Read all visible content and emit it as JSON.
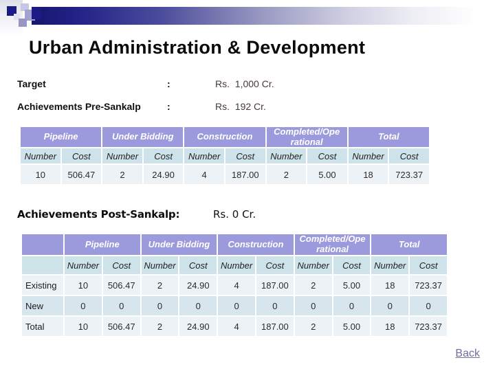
{
  "header": {
    "title": "Urban Administration & Development"
  },
  "summary": {
    "target_label": "Target",
    "target_colon": ":",
    "target_value": "Rs.  1,000 Cr.",
    "pre_label": "Achievements Pre-Sankalp",
    "pre_colon": ":",
    "pre_value": "Rs.  192 Cr."
  },
  "pre_table": {
    "groups": [
      "Pipeline",
      "Under Bidding",
      "Construction",
      "Completed/Ope rational",
      "Total"
    ],
    "subheaders": [
      "Number",
      "Cost",
      "Number",
      "Cost",
      "Number",
      "Cost",
      "Number",
      "Cost",
      "Number",
      "Cost"
    ],
    "values": [
      "10",
      "506.47",
      "2",
      "24.90",
      "4",
      "187.00",
      "2",
      "5.00",
      "18",
      "723.37"
    ]
  },
  "post_section": {
    "heading": "Achievements Post-Sankalp",
    "colon": ":",
    "value": "Rs. 0 Cr."
  },
  "post_table": {
    "groups": [
      "Pipeline",
      "Under Bidding",
      "Construction",
      "Completed/Ope rational",
      "Total"
    ],
    "subheaders": [
      "Number",
      "Cost",
      "Number",
      "Cost",
      "Number",
      "Cost",
      "Number",
      "Cost",
      "Number",
      "Cost"
    ],
    "rows": [
      {
        "label": "Existing",
        "values": [
          "10",
          "506.47",
          "2",
          "24.90",
          "4",
          "187.00",
          "2",
          "5.00",
          "18",
          "723.37"
        ]
      },
      {
        "label": "New",
        "values": [
          "0",
          "0",
          "0",
          "0",
          "0",
          "0",
          "0",
          "0",
          "0",
          "0"
        ]
      },
      {
        "label": "Total",
        "values": [
          "10",
          "506.47",
          "2",
          "24.90",
          "4",
          "187.00",
          "2",
          "5.00",
          "18",
          "723.37"
        ]
      }
    ]
  },
  "footer": {
    "back_label": "Back"
  },
  "colors": {
    "header_purple": "#9b9adc",
    "subheader_blue": "#cee2ea",
    "row_light": "#ecf2f6",
    "row_medium": "#d7e5ec",
    "banner_navy": "#1b1b85",
    "value_text": "#463838",
    "back_link": "#6f6f9e"
  }
}
